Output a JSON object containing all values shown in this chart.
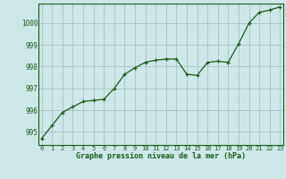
{
  "hours": [
    0,
    1,
    2,
    3,
    4,
    5,
    6,
    7,
    8,
    9,
    10,
    11,
    12,
    13,
    14,
    15,
    16,
    17,
    18,
    19,
    20,
    21,
    22,
    23
  ],
  "pressure": [
    994.7,
    995.3,
    995.9,
    996.15,
    996.4,
    996.45,
    996.5,
    997.0,
    997.65,
    997.95,
    998.2,
    998.3,
    998.35,
    998.35,
    997.65,
    997.6,
    998.2,
    998.25,
    998.2,
    999.05,
    1000.0,
    1000.5,
    1000.6,
    1000.75
  ],
  "line_color": "#1a5c1a",
  "marker_color": "#1a5c1a",
  "bg_color": "#cce8e8",
  "grid_color": "#aac8c8",
  "xlabel": "Graphe pression niveau de la mer (hPa)",
  "xlabel_color": "#1a5c1a",
  "tick_color": "#1a5c1a",
  "ylim": [
    994.4,
    1000.9
  ],
  "yticks": [
    995,
    996,
    997,
    998,
    999,
    1000
  ],
  "xticks": [
    0,
    1,
    2,
    3,
    4,
    5,
    6,
    7,
    8,
    9,
    10,
    11,
    12,
    13,
    14,
    15,
    16,
    17,
    18,
    19,
    20,
    21,
    22,
    23
  ]
}
